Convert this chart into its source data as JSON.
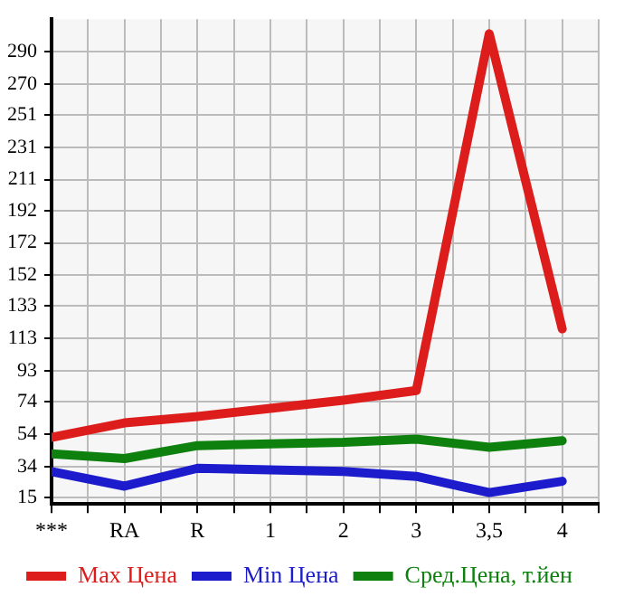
{
  "chart_data": {
    "type": "line",
    "categories": [
      "***",
      "RA",
      "R",
      "1",
      "2",
      "3",
      "3,5",
      "4"
    ],
    "series": [
      {
        "name": "Max Цена",
        "color": "#dd1c1c",
        "values": [
          52,
          61,
          65,
          70,
          75,
          81,
          301,
          119
        ]
      },
      {
        "name": "Min Цена",
        "color": "#1c1ccc",
        "values": [
          31,
          22,
          33,
          32,
          31,
          28,
          18,
          25
        ]
      },
      {
        "name": "Сред.Цена, т.йен",
        "color": "#0d800d",
        "values": [
          42,
          39,
          47,
          48,
          49,
          51,
          46,
          50
        ]
      }
    ],
    "ylim": [
      11,
      310
    ],
    "yticks": [
      15,
      34,
      54,
      74,
      93,
      113,
      133,
      152,
      172,
      192,
      211,
      231,
      251,
      270,
      290
    ],
    "grid": true,
    "legend": "bottom",
    "marker": "none",
    "line_style": "solid"
  }
}
